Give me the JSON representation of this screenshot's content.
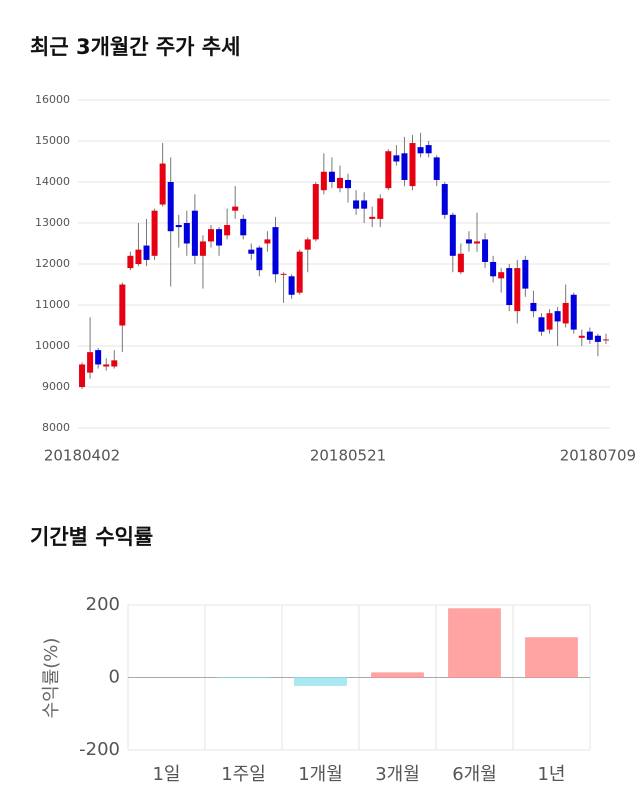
{
  "chart_data": [
    {
      "type": "candlestick",
      "title": "최근 3개월간 주가 추세",
      "categories": [
        "20180402",
        null,
        null,
        null,
        null,
        null,
        null,
        null,
        null,
        null,
        null,
        null,
        null,
        null,
        null,
        null,
        null,
        null,
        null,
        null,
        null,
        null,
        null,
        null,
        null,
        null,
        null,
        null,
        null,
        null,
        null,
        null,
        null,
        "20180521",
        null,
        null,
        null,
        null,
        null,
        null,
        null,
        null,
        null,
        null,
        null,
        null,
        null,
        null,
        null,
        null,
        null,
        null,
        null,
        null,
        null,
        null,
        null,
        null,
        null,
        null,
        null,
        null,
        null,
        null,
        "20180709",
        null
      ],
      "open": [
        9000,
        9350,
        9900,
        9500,
        9500,
        10500,
        11900,
        12000,
        12450,
        12200,
        13450,
        14000,
        12950,
        13000,
        13300,
        12200,
        12550,
        12850,
        12700,
        13300,
        13100,
        12350,
        12400,
        12500,
        12900,
        11750,
        11700,
        11300,
        12350,
        12600,
        13800,
        14250,
        13850,
        14050,
        13550,
        13550,
        13100,
        13100,
        13850,
        14650,
        14700,
        13900,
        14850,
        14900,
        14600,
        13950,
        13200,
        11800,
        12600,
        12500,
        12600,
        12050,
        11650,
        11900,
        10850,
        12100,
        11050,
        10700,
        10400,
        10850,
        10550,
        11250,
        10200,
        10350,
        10250,
        10150
      ],
      "high": [
        9600,
        10700,
        9950,
        9700,
        9900,
        11550,
        12300,
        13000,
        13100,
        13350,
        14950,
        14600,
        13200,
        13300,
        13700,
        12700,
        12950,
        12900,
        13350,
        13900,
        13200,
        12500,
        12450,
        12800,
        13150,
        11800,
        11750,
        12350,
        12650,
        14000,
        14700,
        14600,
        14400,
        14200,
        13800,
        13750,
        13400,
        13700,
        14800,
        14900,
        15100,
        15150,
        15200,
        15000,
        14650,
        14000,
        13250,
        12500,
        12800,
        13250,
        12750,
        12200,
        11900,
        12000,
        12100,
        12200,
        11350,
        10800,
        10900,
        10950,
        11500,
        11300,
        10400,
        10450,
        10300,
        10300
      ],
      "low": [
        8950,
        9200,
        9450,
        9400,
        9450,
        9850,
        11850,
        11950,
        11950,
        12100,
        13400,
        11450,
        12400,
        12200,
        12000,
        11400,
        12400,
        12200,
        12600,
        13100,
        12600,
        12100,
        11700,
        12300,
        11550,
        11050,
        11150,
        11250,
        11800,
        12550,
        13700,
        13850,
        13750,
        13500,
        13200,
        13000,
        12900,
        12900,
        13800,
        14400,
        13900,
        13800,
        14600,
        14600,
        13900,
        13100,
        11800,
        11750,
        12300,
        12300,
        11900,
        11550,
        11300,
        10850,
        10550,
        11200,
        10700,
        10250,
        10300,
        10000,
        10450,
        10300,
        10000,
        10050,
        9750,
        10050
      ],
      "close": [
        9550,
        9850,
        9550,
        9550,
        9650,
        11500,
        12200,
        12350,
        12100,
        13300,
        14450,
        12800,
        12900,
        12500,
        12200,
        12550,
        12850,
        12450,
        12950,
        13400,
        12700,
        12250,
        11850,
        12600,
        11750,
        11760,
        11250,
        12300,
        12600,
        13950,
        14250,
        14000,
        14100,
        13850,
        13350,
        13350,
        13150,
        13600,
        14750,
        14500,
        14050,
        14950,
        14700,
        14700,
        14050,
        13200,
        12200,
        12250,
        12500,
        12550,
        12050,
        11700,
        11800,
        11000,
        11900,
        11400,
        10850,
        10350,
        10800,
        10600,
        11050,
        10400,
        10250,
        10150,
        10100,
        10160
      ],
      "up_color": "#e60012",
      "down_color": "#0000dc",
      "ylim": [
        8000,
        16000
      ],
      "yticks": [
        8000,
        9000,
        10000,
        11000,
        12000,
        13000,
        14000,
        15000,
        16000
      ],
      "grid": true
    },
    {
      "type": "bar",
      "title": "기간별 수익률",
      "ylabel": "수익률(%)",
      "categories": [
        "1일",
        "1주일",
        "1개월",
        "3개월",
        "6개월",
        "1년"
      ],
      "values": [
        0,
        -1,
        -22,
        13,
        190,
        110
      ],
      "positive_color": "#ffa3a3",
      "negative_color": "#a8e8f2",
      "ylim": [
        -200,
        200
      ],
      "yticks": [
        -200,
        0,
        200
      ],
      "grid": true
    }
  ]
}
